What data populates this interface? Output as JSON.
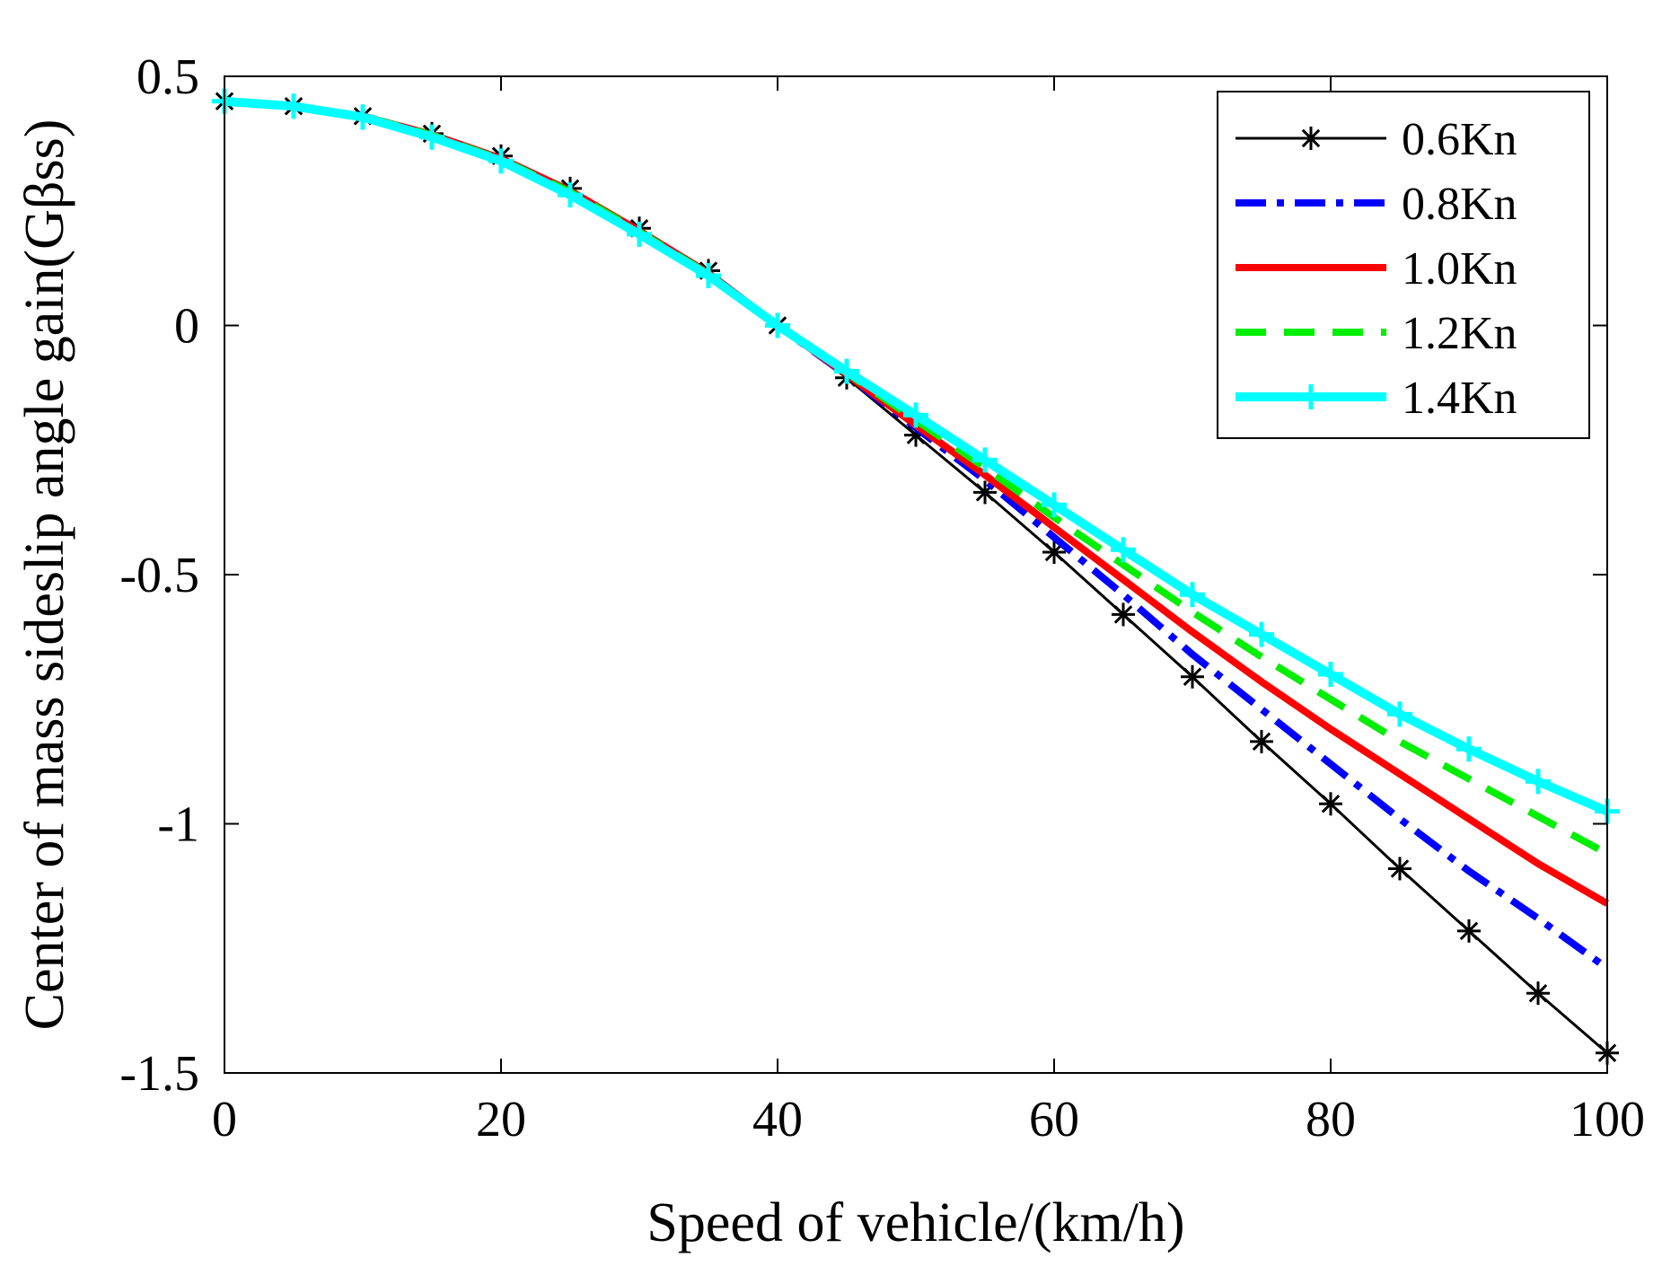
{
  "chart_data": {
    "type": "line",
    "title": "",
    "xlabel": "Speed of vehicle/(km/h)",
    "ylabel": "Center of mass sideslip angle gain(Gβss)",
    "xlim": [
      0,
      100
    ],
    "ylim": [
      -1.5,
      0.5
    ],
    "x_ticks": [
      0,
      20,
      40,
      60,
      80,
      100
    ],
    "x_tick_labels": [
      "0",
      "20",
      "40",
      "60",
      "80",
      "100"
    ],
    "y_ticks": [
      0.5,
      0,
      -0.5,
      -1,
      -1.5
    ],
    "y_tick_labels": [
      "0.5",
      "0",
      "-0.5",
      "-1",
      "-1.5"
    ],
    "grid": false,
    "legend_position": "top-right",
    "x": [
      0,
      5,
      10,
      15,
      20,
      25,
      30,
      35,
      40,
      45,
      50,
      55,
      60,
      65,
      70,
      75,
      80,
      85,
      90,
      95,
      100
    ],
    "series": [
      {
        "name": "0.6Kn",
        "color": "#000000",
        "style": "solid-asterisk",
        "values": [
          0.45,
          0.44,
          0.42,
          0.385,
          0.34,
          0.275,
          0.195,
          0.11,
          0.0,
          -0.105,
          -0.22,
          -0.335,
          -0.455,
          -0.58,
          -0.705,
          -0.835,
          -0.96,
          -1.09,
          -1.215,
          -1.34,
          -1.46
        ]
      },
      {
        "name": "0.8Kn",
        "color": "#0000ff",
        "style": "dash-dot",
        "values": [
          0.45,
          0.44,
          0.42,
          0.383,
          0.335,
          0.27,
          0.19,
          0.105,
          0.0,
          -0.1,
          -0.205,
          -0.31,
          -0.425,
          -0.54,
          -0.66,
          -0.77,
          -0.88,
          -0.99,
          -1.095,
          -1.19,
          -1.29
        ]
      },
      {
        "name": "1.0Kn",
        "color": "#ff0000",
        "style": "solid-thick",
        "values": [
          0.45,
          0.44,
          0.42,
          0.383,
          0.335,
          0.27,
          0.19,
          0.105,
          0.0,
          -0.098,
          -0.2,
          -0.3,
          -0.405,
          -0.51,
          -0.615,
          -0.715,
          -0.81,
          -0.9,
          -0.99,
          -1.08,
          -1.16
        ]
      },
      {
        "name": "1.2Kn",
        "color": "#00ee00",
        "style": "dashed",
        "values": [
          0.45,
          0.44,
          0.42,
          0.382,
          0.333,
          0.268,
          0.188,
          0.103,
          0.0,
          -0.095,
          -0.19,
          -0.285,
          -0.385,
          -0.48,
          -0.575,
          -0.665,
          -0.75,
          -0.835,
          -0.91,
          -0.985,
          -1.06
        ]
      },
      {
        "name": "1.4Kn",
        "color": "#00ffff",
        "style": "solid-plus",
        "values": [
          0.45,
          0.44,
          0.418,
          0.378,
          0.33,
          0.262,
          0.183,
          0.1,
          0.0,
          -0.092,
          -0.18,
          -0.27,
          -0.36,
          -0.45,
          -0.54,
          -0.62,
          -0.7,
          -0.78,
          -0.85,
          -0.915,
          -0.975
        ]
      }
    ]
  }
}
